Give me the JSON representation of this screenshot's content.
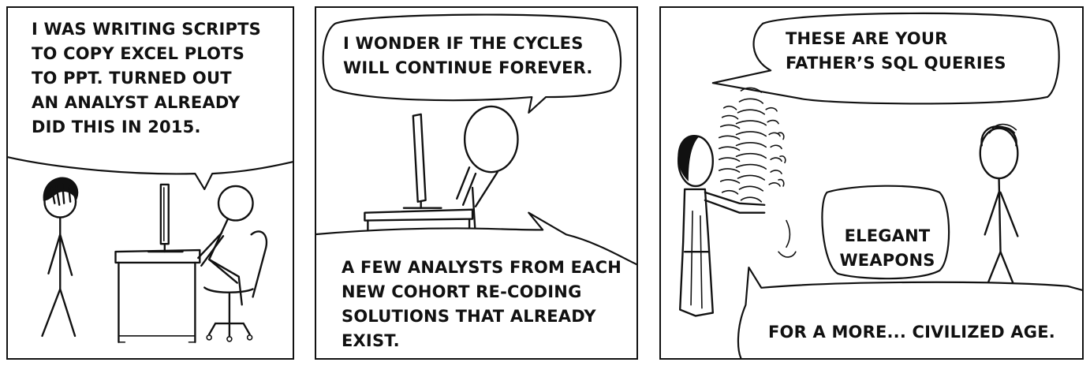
{
  "panels": [
    {
      "id": "panel-1",
      "caption_top": "I WAS WRITING SCRIPTS\nTO COPY EXCEL PLOTS\nTO PPT. TURNED OUT\nAN ANALYST ALREADY\nDID THIS IN 2015."
    },
    {
      "id": "panel-2",
      "caption_top": "I WONDER IF THE CYCLES\nWILL CONTINUE FOREVER.",
      "caption_bottom": "A FEW ANALYSTS FROM EACH\nNEW COHORT RE-CODING\nSOLUTIONS THAT ALREADY\nEXIST."
    },
    {
      "id": "panel-3",
      "caption_top": "THESE ARE YOUR\nFATHER’S SQL QUERIES",
      "caption_middle": "ELEGANT\nWEAPONS",
      "caption_bottom": "FOR A MORE... CIVILIZED AGE."
    }
  ],
  "colors": {
    "ink": "#111111",
    "paper": "#ffffff"
  }
}
